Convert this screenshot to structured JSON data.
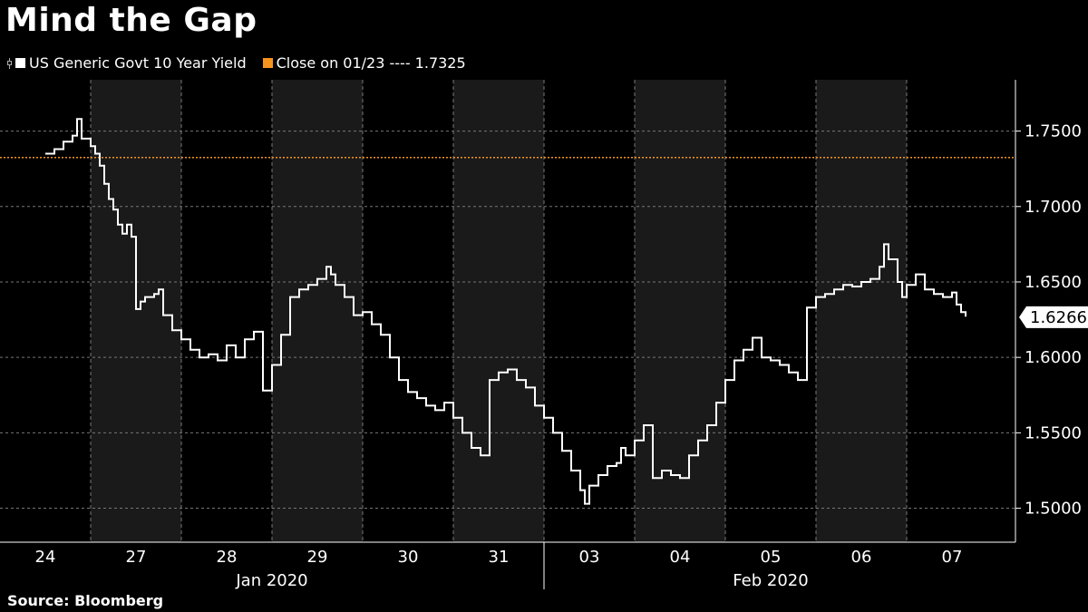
{
  "chart_data": {
    "type": "line",
    "title": "Mind the Gap",
    "source": "Source: Bloomberg",
    "series": [
      {
        "name": "US Generic Govt 10 Year Yield",
        "color": "#ffffff",
        "values": [
          [
            0.0,
            1.735
          ],
          [
            0.1,
            1.738
          ],
          [
            0.2,
            1.743
          ],
          [
            0.3,
            1.747
          ],
          [
            0.35,
            1.758
          ],
          [
            0.4,
            1.745
          ],
          [
            0.5,
            1.74
          ],
          [
            0.55,
            1.735
          ],
          [
            0.6,
            1.727
          ],
          [
            0.65,
            1.715
          ],
          [
            0.7,
            1.705
          ],
          [
            0.75,
            1.698
          ],
          [
            0.8,
            1.688
          ],
          [
            0.85,
            1.682
          ],
          [
            0.9,
            1.688
          ],
          [
            0.95,
            1.68
          ],
          [
            1.0,
            1.632
          ],
          [
            1.05,
            1.637
          ],
          [
            1.1,
            1.64
          ],
          [
            1.15,
            1.64
          ],
          [
            1.2,
            1.642
          ],
          [
            1.25,
            1.645
          ],
          [
            1.3,
            1.628
          ],
          [
            1.4,
            1.618
          ],
          [
            1.5,
            1.612
          ],
          [
            1.6,
            1.605
          ],
          [
            1.7,
            1.6
          ],
          [
            1.8,
            1.602
          ],
          [
            1.9,
            1.598
          ],
          [
            2.0,
            1.608
          ],
          [
            2.1,
            1.6
          ],
          [
            2.2,
            1.612
          ],
          [
            2.3,
            1.617
          ],
          [
            2.4,
            1.578
          ],
          [
            2.5,
            1.595
          ],
          [
            2.6,
            1.615
          ],
          [
            2.7,
            1.64
          ],
          [
            2.8,
            1.645
          ],
          [
            2.9,
            1.648
          ],
          [
            3.0,
            1.652
          ],
          [
            3.1,
            1.66
          ],
          [
            3.15,
            1.655
          ],
          [
            3.2,
            1.648
          ],
          [
            3.3,
            1.64
          ],
          [
            3.4,
            1.628
          ],
          [
            3.5,
            1.63
          ],
          [
            3.6,
            1.622
          ],
          [
            3.7,
            1.615
          ],
          [
            3.8,
            1.6
          ],
          [
            3.9,
            1.585
          ],
          [
            4.0,
            1.577
          ],
          [
            4.1,
            1.573
          ],
          [
            4.2,
            1.568
          ],
          [
            4.3,
            1.565
          ],
          [
            4.4,
            1.57
          ],
          [
            4.5,
            1.56
          ],
          [
            4.6,
            1.55
          ],
          [
            4.7,
            1.54
          ],
          [
            4.8,
            1.535
          ],
          [
            4.9,
            1.585
          ],
          [
            5.0,
            1.59
          ],
          [
            5.1,
            1.592
          ],
          [
            5.2,
            1.585
          ],
          [
            5.3,
            1.58
          ],
          [
            5.4,
            1.568
          ],
          [
            5.5,
            1.56
          ],
          [
            5.6,
            1.55
          ],
          [
            5.7,
            1.538
          ],
          [
            5.8,
            1.525
          ],
          [
            5.9,
            1.512
          ],
          [
            5.95,
            1.503
          ],
          [
            6.0,
            1.515
          ],
          [
            6.1,
            1.522
          ],
          [
            6.2,
            1.528
          ],
          [
            6.3,
            1.53
          ],
          [
            6.35,
            1.54
          ],
          [
            6.4,
            1.535
          ],
          [
            6.5,
            1.545
          ],
          [
            6.6,
            1.555
          ],
          [
            6.7,
            1.52
          ],
          [
            6.8,
            1.525
          ],
          [
            6.9,
            1.522
          ],
          [
            7.0,
            1.52
          ],
          [
            7.1,
            1.535
          ],
          [
            7.2,
            1.545
          ],
          [
            7.3,
            1.555
          ],
          [
            7.4,
            1.57
          ],
          [
            7.5,
            1.585
          ],
          [
            7.6,
            1.598
          ],
          [
            7.7,
            1.605
          ],
          [
            7.8,
            1.613
          ],
          [
            7.9,
            1.6
          ],
          [
            8.0,
            1.598
          ],
          [
            8.1,
            1.595
          ],
          [
            8.2,
            1.59
          ],
          [
            8.3,
            1.585
          ],
          [
            8.4,
            1.633
          ],
          [
            8.5,
            1.64
          ],
          [
            8.6,
            1.642
          ],
          [
            8.7,
            1.645
          ],
          [
            8.8,
            1.648
          ],
          [
            8.9,
            1.647
          ],
          [
            9.0,
            1.65
          ],
          [
            9.1,
            1.652
          ],
          [
            9.2,
            1.66
          ],
          [
            9.25,
            1.675
          ],
          [
            9.3,
            1.665
          ],
          [
            9.4,
            1.65
          ],
          [
            9.45,
            1.64
          ],
          [
            9.5,
            1.648
          ],
          [
            9.6,
            1.655
          ],
          [
            9.7,
            1.645
          ],
          [
            9.8,
            1.642
          ],
          [
            9.9,
            1.64
          ],
          [
            10.0,
            1.643
          ],
          [
            10.05,
            1.635
          ],
          [
            10.1,
            1.63
          ],
          [
            10.15,
            1.627
          ]
        ]
      },
      {
        "name": "Close on 01/23 ---- 1.7325",
        "color": "#f7941d",
        "value": 1.7325
      }
    ],
    "categories": [
      "24",
      "27",
      "28",
      "29",
      "30",
      "31",
      "03",
      "04",
      "05",
      "06",
      "07"
    ],
    "months": [
      "Jan 2020",
      "Feb 2020"
    ],
    "y_ticks": [
      "1.5000",
      "1.5500",
      "1.6000",
      "1.6500",
      "1.7000",
      "1.7500"
    ],
    "ylim": [
      1.4775,
      1.784
    ],
    "last_value": "1.6266",
    "shaded_days": [
      1,
      3,
      5,
      7,
      9
    ]
  }
}
